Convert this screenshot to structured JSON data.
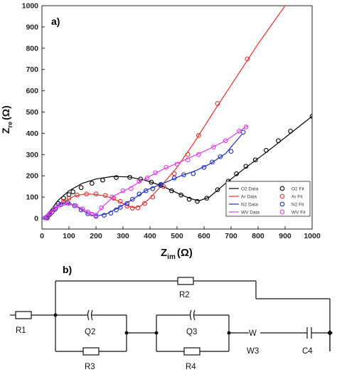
{
  "chart_data": {
    "type": "scatter",
    "panel_label": "a)",
    "xlabel": "Z",
    "xlabel_sub": "im",
    "xlabel_unit": "(Ω)",
    "ylabel": "Z",
    "ylabel_sub": "re",
    "ylabel_unit": "(Ω)",
    "xlim": [
      0,
      1000
    ],
    "ylim": [
      -50,
      1000
    ],
    "xticks": [
      0,
      100,
      200,
      300,
      400,
      500,
      600,
      700,
      800,
      900,
      1000
    ],
    "yticks": [
      0,
      100,
      200,
      300,
      400,
      500,
      600,
      700,
      800,
      900,
      1000
    ],
    "legend_position": "bottom-right",
    "series": [
      {
        "data_name": "O2 Data",
        "fit_name": "O2 Fit",
        "color": "#000000",
        "points": [
          [
            20,
            3
          ],
          [
            30,
            20
          ],
          [
            45,
            45
          ],
          [
            60,
            70
          ],
          [
            80,
            95
          ],
          [
            100,
            112
          ],
          [
            115,
            125
          ],
          [
            145,
            145
          ],
          [
            185,
            165
          ],
          [
            225,
            180
          ],
          [
            275,
            192
          ],
          [
            325,
            193
          ],
          [
            365,
            185
          ],
          [
            405,
            170
          ],
          [
            440,
            155
          ],
          [
            480,
            130
          ],
          [
            515,
            110
          ],
          [
            545,
            90
          ],
          [
            575,
            80
          ],
          [
            610,
            95
          ],
          [
            650,
            135
          ],
          [
            690,
            175
          ],
          [
            720,
            210
          ],
          [
            755,
            245
          ],
          [
            790,
            275
          ],
          [
            830,
            320
          ],
          [
            875,
            365
          ],
          [
            920,
            410
          ],
          [
            1000,
            480
          ]
        ],
        "fit": [
          [
            15,
            0
          ],
          [
            30,
            35
          ],
          [
            60,
            85
          ],
          [
            100,
            130
          ],
          [
            150,
            165
          ],
          [
            200,
            185
          ],
          [
            260,
            197
          ],
          [
            320,
            195
          ],
          [
            380,
            180
          ],
          [
            440,
            155
          ],
          [
            500,
            120
          ],
          [
            545,
            95
          ],
          [
            580,
            82
          ],
          [
            620,
            100
          ],
          [
            680,
            165
          ],
          [
            750,
            235
          ],
          [
            830,
            310
          ],
          [
            910,
            390
          ],
          [
            1000,
            480
          ]
        ]
      },
      {
        "data_name": "Ar Data",
        "fit_name": "Ar Fit",
        "color": "#e8322e",
        "points": [
          [
            20,
            5
          ],
          [
            30,
            20
          ],
          [
            45,
            40
          ],
          [
            60,
            60
          ],
          [
            80,
            80
          ],
          [
            100,
            95
          ],
          [
            130,
            110
          ],
          [
            165,
            115
          ],
          [
            200,
            115
          ],
          [
            235,
            108
          ],
          [
            265,
            95
          ],
          [
            290,
            80
          ],
          [
            315,
            58
          ],
          [
            335,
            48
          ],
          [
            355,
            50
          ],
          [
            380,
            70
          ],
          [
            410,
            100
          ],
          [
            450,
            150
          ],
          [
            490,
            210
          ],
          [
            540,
            300
          ],
          [
            580,
            390
          ],
          [
            650,
            540
          ],
          [
            760,
            750
          ]
        ],
        "fit": [
          [
            15,
            0
          ],
          [
            40,
            35
          ],
          [
            80,
            78
          ],
          [
            120,
            105
          ],
          [
            160,
            115
          ],
          [
            200,
            113
          ],
          [
            240,
            103
          ],
          [
            280,
            83
          ],
          [
            315,
            60
          ],
          [
            340,
            50
          ],
          [
            365,
            58
          ],
          [
            400,
            95
          ],
          [
            450,
            165
          ],
          [
            500,
            240
          ],
          [
            560,
            350
          ],
          [
            640,
            510
          ],
          [
            720,
            665
          ],
          [
            800,
            820
          ],
          [
            900,
            1000
          ]
        ]
      },
      {
        "data_name": "N2 Data",
        "fit_name": "N2 Fit",
        "color": "#2030c8",
        "points": [
          [
            15,
            3
          ],
          [
            25,
            15
          ],
          [
            38,
            30
          ],
          [
            50,
            45
          ],
          [
            70,
            65
          ],
          [
            95,
            72
          ],
          [
            120,
            60
          ],
          [
            145,
            40
          ],
          [
            170,
            22
          ],
          [
            200,
            10
          ],
          [
            230,
            15
          ],
          [
            255,
            25
          ],
          [
            275,
            40
          ],
          [
            290,
            52
          ],
          [
            315,
            70
          ],
          [
            335,
            90
          ],
          [
            360,
            115
          ],
          [
            385,
            130
          ],
          [
            410,
            140
          ],
          [
            440,
            160
          ],
          [
            490,
            190
          ],
          [
            525,
            205
          ],
          [
            560,
            210
          ],
          [
            600,
            240
          ],
          [
            630,
            265
          ],
          [
            660,
            290
          ],
          [
            700,
            315
          ],
          [
            745,
            405
          ]
        ],
        "fit": [
          [
            15,
            0
          ],
          [
            40,
            40
          ],
          [
            70,
            70
          ],
          [
            100,
            72
          ],
          [
            130,
            55
          ],
          [
            160,
            30
          ],
          [
            185,
            15
          ],
          [
            210,
            13
          ],
          [
            240,
            22
          ],
          [
            280,
            48
          ],
          [
            330,
            85
          ],
          [
            390,
            135
          ],
          [
            450,
            165
          ],
          [
            510,
            198
          ],
          [
            570,
            225
          ],
          [
            620,
            255
          ],
          [
            680,
            305
          ],
          [
            740,
            395
          ]
        ]
      },
      {
        "data_name": "WV Data",
        "fit_name": "WV Fit",
        "color": "#e040e8",
        "points": [
          [
            10,
            2
          ],
          [
            20,
            10
          ],
          [
            30,
            25
          ],
          [
            45,
            45
          ],
          [
            60,
            60
          ],
          [
            80,
            70
          ],
          [
            100,
            70
          ],
          [
            125,
            60
          ],
          [
            150,
            45
          ],
          [
            170,
            30
          ],
          [
            185,
            20
          ],
          [
            200,
            15
          ],
          [
            220,
            50
          ],
          [
            260,
            100
          ],
          [
            300,
            130
          ],
          [
            330,
            140
          ],
          [
            360,
            175
          ],
          [
            390,
            190
          ],
          [
            420,
            215
          ],
          [
            460,
            240
          ],
          [
            500,
            255
          ],
          [
            540,
            275
          ],
          [
            580,
            300
          ],
          [
            635,
            335
          ],
          [
            680,
            365
          ],
          [
            730,
            410
          ],
          [
            755,
            430
          ]
        ],
        "fit": [
          [
            10,
            0
          ],
          [
            30,
            28
          ],
          [
            60,
            58
          ],
          [
            90,
            70
          ],
          [
            120,
            62
          ],
          [
            150,
            45
          ],
          [
            180,
            25
          ],
          [
            200,
            18
          ],
          [
            230,
            62
          ],
          [
            270,
            108
          ],
          [
            320,
            140
          ],
          [
            380,
            185
          ],
          [
            450,
            232
          ],
          [
            520,
            270
          ],
          [
            600,
            315
          ],
          [
            680,
            365
          ],
          [
            760,
            435
          ]
        ]
      }
    ]
  },
  "circuit": {
    "panel_label": "b)",
    "labels": {
      "r1": "R1",
      "r2": "R2",
      "r3": "R3",
      "r4": "R4",
      "q2": "Q2",
      "q3": "Q3",
      "w_symbol": "W",
      "w3": "W3",
      "c4": "C4"
    }
  }
}
